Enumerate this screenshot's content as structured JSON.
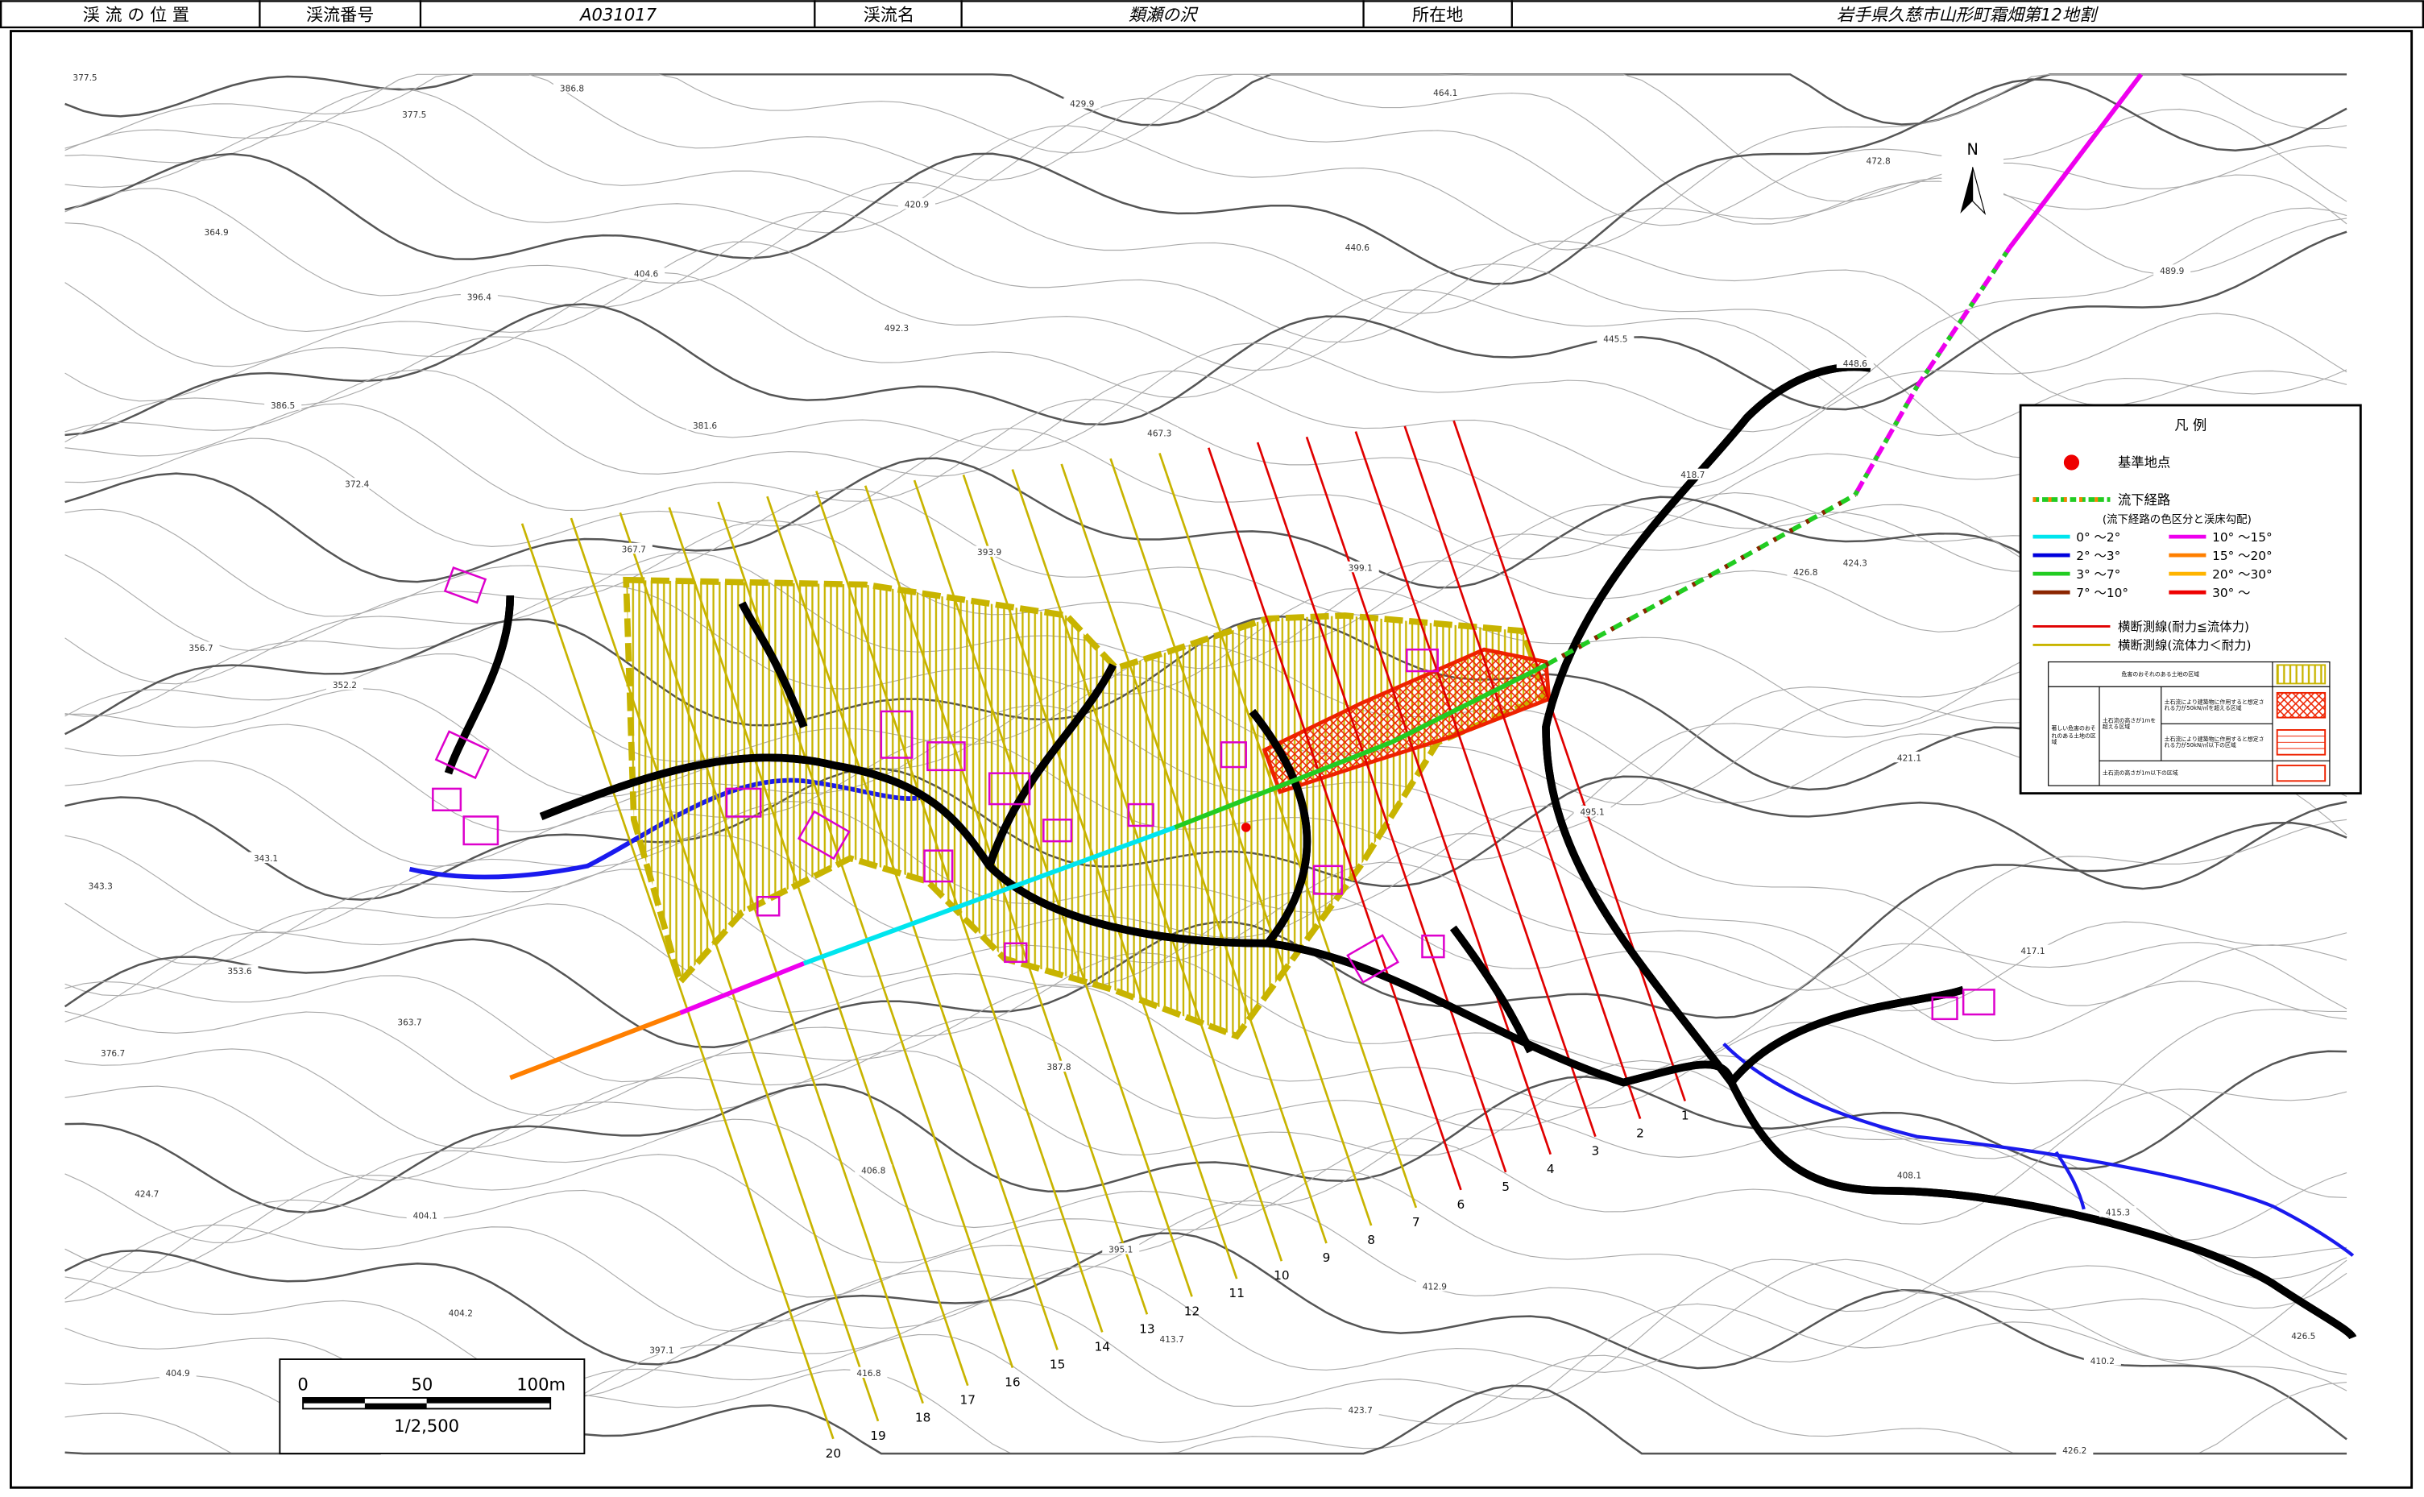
{
  "header": {
    "position_label": "渓 流 の 位 置",
    "number_label": "渓流番号",
    "number": "A031017",
    "name_label": "渓流名",
    "name": "類瀬の沢",
    "location_label": "所在地",
    "location": "岩手県久慈市山形町霜畑第12地割"
  },
  "north": "N",
  "scale": {
    "ticks": [
      "0",
      "50",
      "100m"
    ],
    "ratio": "1/2,500"
  },
  "sections": [
    {
      "label": "1",
      "color": "#e00000"
    },
    {
      "label": "2",
      "color": "#e00000"
    },
    {
      "label": "3",
      "color": "#e00000"
    },
    {
      "label": "4",
      "color": "#e00000"
    },
    {
      "label": "5",
      "color": "#e00000"
    },
    {
      "label": "6",
      "color": "#e00000"
    },
    {
      "label": "7",
      "color": "#c8b400"
    },
    {
      "label": "8",
      "color": "#c8b400"
    },
    {
      "label": "9",
      "color": "#c8b400"
    },
    {
      "label": "10",
      "color": "#c8b400"
    },
    {
      "label": "11",
      "color": "#c8b400"
    },
    {
      "label": "12",
      "color": "#c8b400"
    },
    {
      "label": "13",
      "color": "#c8b400"
    },
    {
      "label": "14",
      "color": "#c8b400"
    },
    {
      "label": "15",
      "color": "#c8b400"
    },
    {
      "label": "16",
      "color": "#c8b400"
    },
    {
      "label": "17",
      "color": "#c8b400"
    },
    {
      "label": "18",
      "color": "#c8b400"
    },
    {
      "label": "19",
      "color": "#c8b400"
    },
    {
      "label": "20",
      "color": "#c8b400"
    }
  ],
  "elevation_labels": [
    "377.5",
    "377.5",
    "386.8",
    "429.9",
    "464.1",
    "472.8",
    "364.9",
    "396.4",
    "404.6",
    "420.9",
    "440.6",
    "489.9",
    "445.5",
    "492.3",
    "386.5",
    "381.6",
    "467.3",
    "448.6",
    "418.7",
    "372.4",
    "367.7",
    "393.9",
    "399.1",
    "426.8",
    "424.3",
    "356.7",
    "352.2",
    "421.1",
    "495.1",
    "343.1",
    "343.3",
    "353.6",
    "363.7",
    "376.7",
    "387.8",
    "417.1",
    "408.1",
    "415.3",
    "406.8",
    "424.7",
    "404.1",
    "395.1",
    "412.9",
    "413.7",
    "404.2",
    "404.9",
    "397.1",
    "416.8",
    "410.2",
    "426.5",
    "423.7",
    "426.2"
  ],
  "legend": {
    "title": "凡 例",
    "base_point": "基準地点",
    "flow_path": "流下経路",
    "flow_note": "(流下経路の色区分と渓床勾配)",
    "slopes": [
      {
        "label": "0° ～2°",
        "color": "#00e5ee"
      },
      {
        "label": "2° ～3°",
        "color": "#0000dd"
      },
      {
        "label": "3° ～7°",
        "color": "#22cc22"
      },
      {
        "label": "7° ～10°",
        "color": "#8b2500"
      },
      {
        "label": "10° ～15°",
        "color": "#ee00ee"
      },
      {
        "label": "15° ～20°",
        "color": "#ff7f00"
      },
      {
        "label": "20° ～30°",
        "color": "#ffb400"
      },
      {
        "label": "30° ～",
        "color": "#ee0000"
      }
    ],
    "section_red": "横断測線(耐力≦流体力)",
    "section_yellow": "横断測線(流体力＜耐力)",
    "zone_hazard": "危害のおそれのある土地の区域",
    "zone_severe": "著しい危害のおそれのある土地の区域",
    "zone_over1m": "土石流の高さが1mを超える区域",
    "zone_force_over": "土石流により建築物に作用すると想定される力が50kN/㎡を超える区域",
    "zone_force_under": "土石流により建築物に作用すると想定される力が50kN/㎡以下の区域",
    "zone_under1m": "土石流の高さが1m以下の区域"
  }
}
